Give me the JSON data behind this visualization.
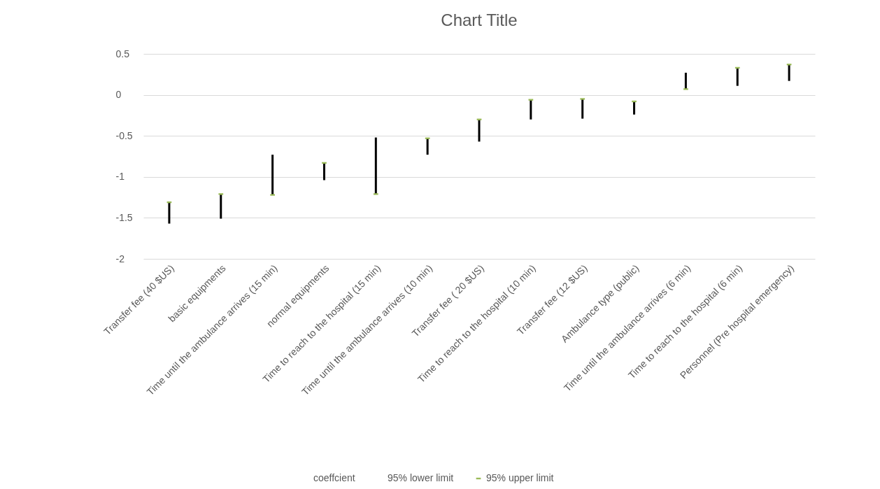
{
  "chart_data": {
    "type": "bar",
    "title": "Chart Title",
    "categories": [
      "Transfer fee (40 $US)",
      "basic equipments",
      "Time until the ambulance arrives (15 min)",
      "normal equipments",
      "Time to reach to the hospital (15 min)",
      "Time until the ambulance arrives (10 min)",
      "Transfer fee ( 20 $US)",
      "Time to reach to the hospital (10 min)",
      "Transfer fee (12 $US)",
      "Ambulance type (public)",
      "Time until the ambulance arrives (6 min)",
      "Time to reach to the hospital (6 min)",
      "Personnel (Pre hospital emergency)"
    ],
    "series": [
      {
        "type": "bar",
        "color": "#000000",
        "base": [
          -1.57,
          -1.51,
          -1.22,
          -1.04,
          -1.21,
          -0.73,
          -0.57,
          -0.3,
          -0.29,
          -0.24,
          0.07,
          0.11,
          0.17
        ],
        "values": [
          0.26,
          0.3,
          0.49,
          0.21,
          0.69,
          0.2,
          0.27,
          0.24,
          0.24,
          0.16,
          0.2,
          0.22,
          0.2
        ]
      },
      {
        "type": "scatter",
        "name": "95% upper limit",
        "color": "#9bbb59",
        "marker": "square",
        "values": [
          -1.31,
          -1.21,
          -1.22,
          -0.83,
          -1.21,
          -0.53,
          -0.3,
          -0.06,
          -0.05,
          -0.08,
          0.07,
          0.33,
          0.37
        ]
      }
    ],
    "annotations": [
      "coeffcient",
      "95% lower limit"
    ],
    "ylim": [
      -2,
      0.5
    ],
    "yticks": [
      -2,
      -1.5,
      -1,
      -0.5,
      0,
      0.5
    ],
    "grid": "y",
    "legend": "bottom"
  }
}
